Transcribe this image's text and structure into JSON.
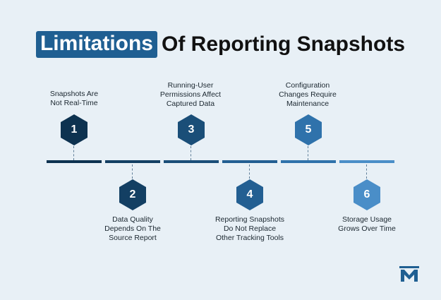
{
  "title": {
    "highlight": "Limitations",
    "rest": "Of Reporting Snapshots"
  },
  "colors": {
    "background": "#e8f0f6",
    "title_highlight": "#1f5f92",
    "step1": "#0d3250",
    "step2": "#133f63",
    "step3": "#1a4e78",
    "step4": "#235f92",
    "step5": "#2f72ab",
    "step6": "#4a8ec8"
  },
  "steps": [
    {
      "number": "1",
      "label_line1": "Snapshots Are",
      "label_line2": "Not Real-Time",
      "label_line3": ""
    },
    {
      "number": "2",
      "label_line1": "Data Quality",
      "label_line2": "Depends On The",
      "label_line3": "Source Report"
    },
    {
      "number": "3",
      "label_line1": "Running-User",
      "label_line2": "Permissions Affect",
      "label_line3": "Captured Data"
    },
    {
      "number": "4",
      "label_line1": "Reporting Snapshots",
      "label_line2": "Do Not Replace",
      "label_line3": "Other Tracking Tools"
    },
    {
      "number": "5",
      "label_line1": "Configuration",
      "label_line2": "Changes Require",
      "label_line3": "Maintenance"
    },
    {
      "number": "6",
      "label_line1": "Storage Usage",
      "label_line2": "Grows Over Time",
      "label_line3": ""
    }
  ],
  "logo": {
    "icon": "m-logo-icon"
  }
}
